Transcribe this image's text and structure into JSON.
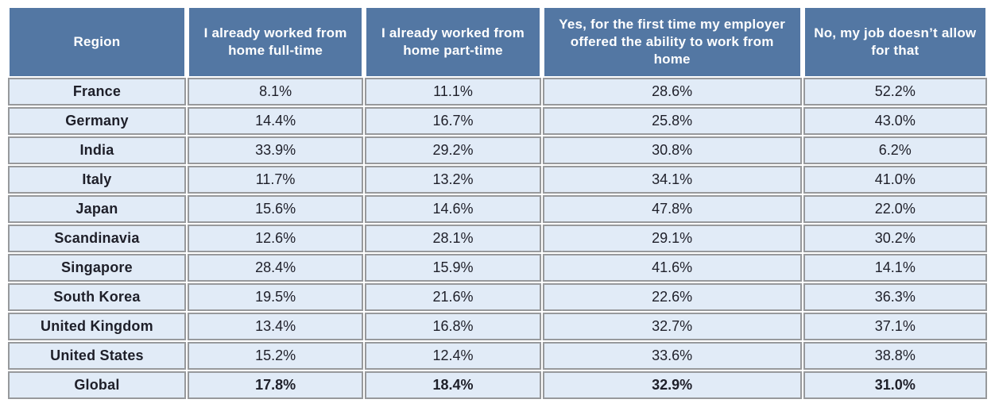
{
  "chart_data": {
    "type": "table",
    "columns": [
      "Region",
      "I already worked from home full-time",
      "I already worked from home part-time",
      "Yes, for the first time my employer offered the ability to work from home",
      "No, my job doesn’t allow for that"
    ],
    "rows": [
      {
        "region": "France",
        "values": [
          "8.1%",
          "11.1%",
          "28.6%",
          "52.2%"
        ]
      },
      {
        "region": "Germany",
        "values": [
          "14.4%",
          "16.7%",
          "25.8%",
          "43.0%"
        ]
      },
      {
        "region": "India",
        "values": [
          "33.9%",
          "29.2%",
          "30.8%",
          "6.2%"
        ]
      },
      {
        "region": "Italy",
        "values": [
          "11.7%",
          "13.2%",
          "34.1%",
          "41.0%"
        ]
      },
      {
        "region": "Japan",
        "values": [
          "15.6%",
          "14.6%",
          "47.8%",
          "22.0%"
        ]
      },
      {
        "region": "Scandinavia",
        "values": [
          "12.6%",
          "28.1%",
          "29.1%",
          "30.2%"
        ]
      },
      {
        "region": "Singapore",
        "values": [
          "28.4%",
          "15.9%",
          "41.6%",
          "14.1%"
        ]
      },
      {
        "region": "South Korea",
        "values": [
          "19.5%",
          "21.6%",
          "22.6%",
          "36.3%"
        ]
      },
      {
        "region": "United Kingdom",
        "values": [
          "13.4%",
          "16.8%",
          "32.7%",
          "37.1%"
        ]
      },
      {
        "region": "United States",
        "values": [
          "15.2%",
          "12.4%",
          "33.6%",
          "38.8%"
        ]
      },
      {
        "region": "Global",
        "values": [
          "17.8%",
          "18.4%",
          "32.9%",
          "31.0%"
        ]
      }
    ],
    "total_row_label": "Global",
    "layout": {
      "grid": "on",
      "header_position": "top"
    },
    "colors": {
      "header_bg": "#5377a3",
      "header_text": "#ffffff",
      "cell_bg": "#e1ebf7",
      "body_text": "#1e1f29",
      "border": "#97999c"
    }
  }
}
